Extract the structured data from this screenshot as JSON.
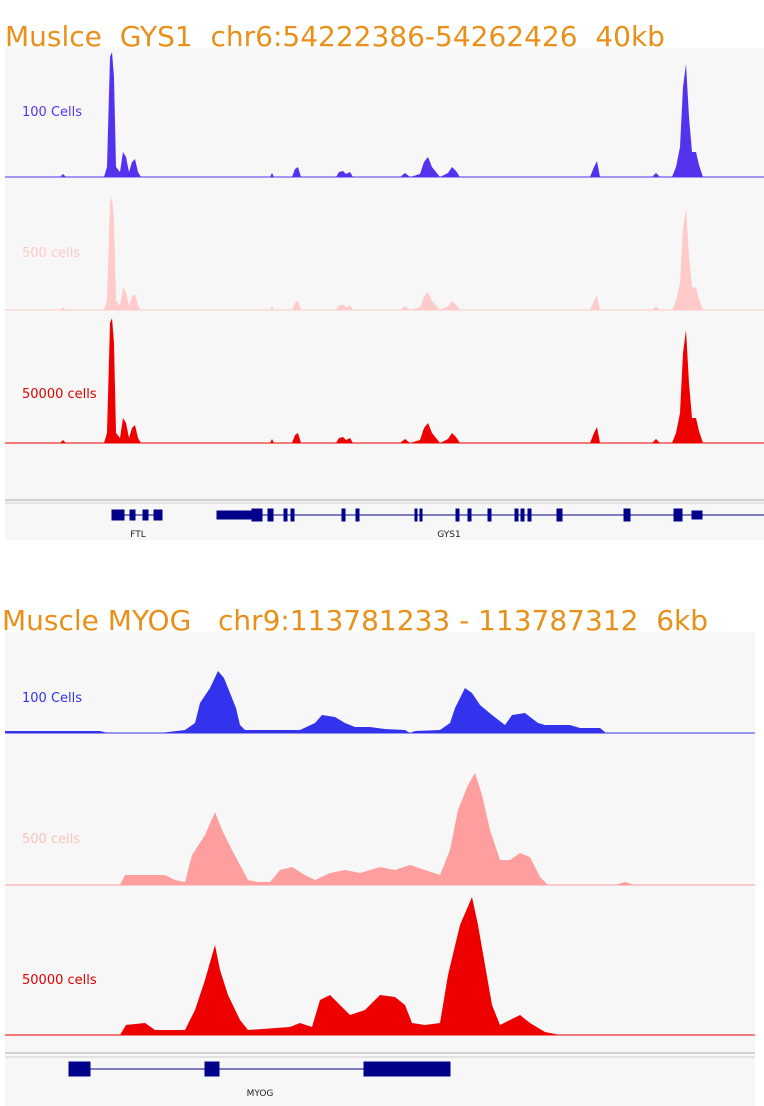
{
  "panels": [
    {
      "title": "Muslce  GYS1  chr6:54222386-54262426  40kb",
      "tracks": [
        {
          "label": "100 Cells"
        },
        {
          "label": "500 cells"
        },
        {
          "label": "50000 cells"
        }
      ],
      "genes": [
        "FTL",
        "GYS1"
      ]
    },
    {
      "title": "Muscle MYOG   chr9:113781233 - 113787312  6kb",
      "tracks": [
        {
          "label": "100 Cells"
        },
        {
          "label": "500 cells"
        },
        {
          "label": "50000 cells"
        }
      ],
      "genes": [
        "MYOG"
      ]
    }
  ]
}
